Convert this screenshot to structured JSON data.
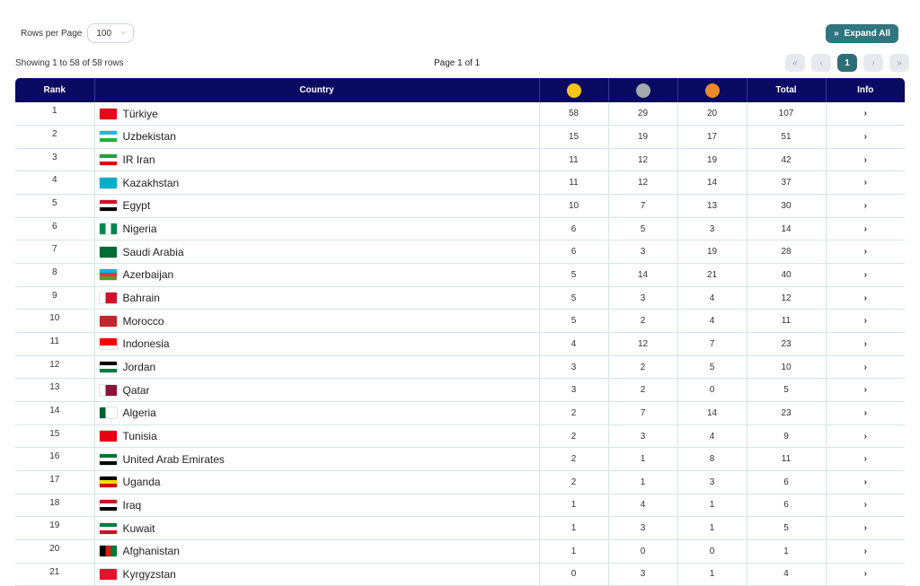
{
  "rows_per_page_label": "Rows per Page",
  "rows_per_page_value": "100",
  "expand_all_label": "Expand All",
  "showing_text": "Showing 1 to 58 of 58 rows",
  "page_text": "Page 1 of 1",
  "pager": {
    "first": "«",
    "prev": "‹",
    "current": "1",
    "next": "›",
    "last": "»"
  },
  "columns": {
    "rank": "Rank",
    "country": "Country",
    "total": "Total",
    "info": "Info"
  },
  "medal_colors": {
    "gold": "#f7c41b",
    "silver": "#a6a9ad",
    "bronze": "#e88b2a"
  },
  "rows": [
    {
      "rank": "1",
      "country": "Türkiye",
      "gold": "58",
      "silver": "29",
      "bronze": "20",
      "total": "107",
      "flag": [
        "#e30a17",
        "#e30a17",
        "#e30a17"
      ]
    },
    {
      "rank": "2",
      "country": "Uzbekistan",
      "gold": "15",
      "silver": "19",
      "bronze": "17",
      "total": "51",
      "flag": [
        "#1eb5e7",
        "#ffffff",
        "#1eb53a"
      ]
    },
    {
      "rank": "3",
      "country": "IR Iran",
      "gold": "11",
      "silver": "12",
      "bronze": "19",
      "total": "42",
      "flag": [
        "#239f40",
        "#ffffff",
        "#da0000"
      ]
    },
    {
      "rank": "4",
      "country": "Kazakhstan",
      "gold": "11",
      "silver": "12",
      "bronze": "14",
      "total": "37",
      "flag": [
        "#00afca",
        "#00afca",
        "#00afca"
      ]
    },
    {
      "rank": "5",
      "country": "Egypt",
      "gold": "10",
      "silver": "7",
      "bronze": "13",
      "total": "30",
      "flag": [
        "#ce1126",
        "#ffffff",
        "#000000"
      ]
    },
    {
      "rank": "6",
      "country": "Nigeria",
      "gold": "6",
      "silver": "5",
      "bronze": "3",
      "total": "14",
      "flag": [
        "#008751",
        "#ffffff",
        "#008751"
      ],
      "vertical": true
    },
    {
      "rank": "7",
      "country": "Saudi Arabia",
      "gold": "6",
      "silver": "3",
      "bronze": "19",
      "total": "28",
      "flag": [
        "#006c35",
        "#006c35",
        "#006c35"
      ]
    },
    {
      "rank": "8",
      "country": "Azerbaijan",
      "gold": "5",
      "silver": "14",
      "bronze": "21",
      "total": "40",
      "flag": [
        "#00b5e2",
        "#ef3340",
        "#509e2f"
      ]
    },
    {
      "rank": "9",
      "country": "Bahrain",
      "gold": "5",
      "silver": "3",
      "bronze": "4",
      "total": "12",
      "flag": [
        "#ffffff",
        "#ce1126",
        "#ce1126"
      ],
      "vertical": true
    },
    {
      "rank": "10",
      "country": "Morocco",
      "gold": "5",
      "silver": "2",
      "bronze": "4",
      "total": "11",
      "flag": [
        "#c1272d",
        "#c1272d",
        "#c1272d"
      ]
    },
    {
      "rank": "11",
      "country": "Indonesia",
      "gold": "4",
      "silver": "12",
      "bronze": "7",
      "total": "23",
      "flag": [
        "#ff0000",
        "#ff0000",
        "#ffffff"
      ]
    },
    {
      "rank": "12",
      "country": "Jordan",
      "gold": "3",
      "silver": "2",
      "bronze": "5",
      "total": "10",
      "flag": [
        "#000000",
        "#ffffff",
        "#007a3d"
      ]
    },
    {
      "rank": "13",
      "country": "Qatar",
      "gold": "3",
      "silver": "2",
      "bronze": "0",
      "total": "5",
      "flag": [
        "#ffffff",
        "#8a1538",
        "#8a1538"
      ],
      "vertical": true
    },
    {
      "rank": "14",
      "country": "Algeria",
      "gold": "2",
      "silver": "7",
      "bronze": "14",
      "total": "23",
      "flag": [
        "#006233",
        "#ffffff",
        "#ffffff"
      ],
      "vertical": true
    },
    {
      "rank": "15",
      "country": "Tunisia",
      "gold": "2",
      "silver": "3",
      "bronze": "4",
      "total": "9",
      "flag": [
        "#e70013",
        "#e70013",
        "#e70013"
      ]
    },
    {
      "rank": "16",
      "country": "United Arab Emirates",
      "gold": "2",
      "silver": "1",
      "bronze": "8",
      "total": "11",
      "flag": [
        "#00732f",
        "#ffffff",
        "#000000"
      ]
    },
    {
      "rank": "17",
      "country": "Uganda",
      "gold": "2",
      "silver": "1",
      "bronze": "3",
      "total": "6",
      "flag": [
        "#000000",
        "#fcdc04",
        "#d90000"
      ]
    },
    {
      "rank": "18",
      "country": "Iraq",
      "gold": "1",
      "silver": "4",
      "bronze": "1",
      "total": "6",
      "flag": [
        "#ce1126",
        "#ffffff",
        "#000000"
      ]
    },
    {
      "rank": "19",
      "country": "Kuwait",
      "gold": "1",
      "silver": "3",
      "bronze": "1",
      "total": "5",
      "flag": [
        "#007a3d",
        "#ffffff",
        "#ce1126"
      ]
    },
    {
      "rank": "20",
      "country": "Afghanistan",
      "gold": "1",
      "silver": "0",
      "bronze": "0",
      "total": "1",
      "flag": [
        "#000000",
        "#d32011",
        "#007a36"
      ],
      "vertical": true
    },
    {
      "rank": "21",
      "country": "Kyrgyzstan",
      "gold": "0",
      "silver": "3",
      "bronze": "1",
      "total": "4",
      "flag": [
        "#e8112d",
        "#e8112d",
        "#e8112d"
      ]
    }
  ]
}
